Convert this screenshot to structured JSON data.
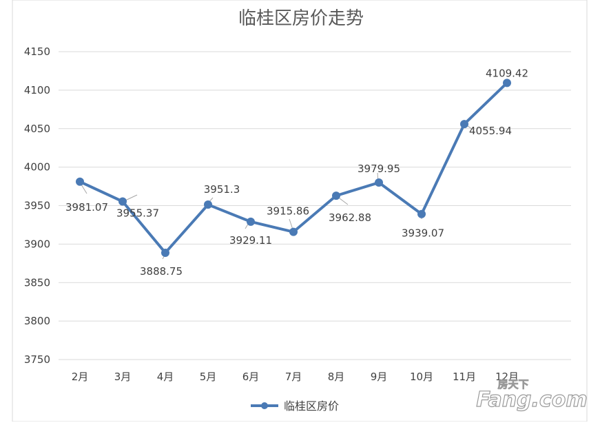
{
  "chart_data": {
    "type": "line",
    "title": "临桂区房价走势",
    "categories": [
      "2月",
      "3月",
      "4月",
      "5月",
      "6月",
      "7月",
      "8月",
      "9月",
      "10月",
      "11月",
      "12月"
    ],
    "series": [
      {
        "name": "临桂区房价",
        "color": "#4a7ab5",
        "values": [
          3981.07,
          3955.37,
          3888.75,
          3951.3,
          3929.11,
          3915.86,
          3962.88,
          3979.95,
          3939.07,
          4055.94,
          4109.42
        ],
        "labels": [
          "3981.07",
          "3955.37",
          "3888.75",
          "3951.3",
          "3929.11",
          "3915.86",
          "3962.88",
          "3979.95",
          "3939.07",
          "4055.94",
          "4109.42"
        ]
      }
    ],
    "ylim": [
      3750,
      4150
    ],
    "yticks": [
      "3750",
      "3800",
      "3850",
      "3900",
      "3950",
      "4000",
      "4050",
      "4100",
      "4150"
    ],
    "grid": true,
    "legend": "bottom",
    "xlabel": "",
    "ylabel": ""
  },
  "watermark": {
    "brand": "Fang.com",
    "cn": "房天下"
  }
}
